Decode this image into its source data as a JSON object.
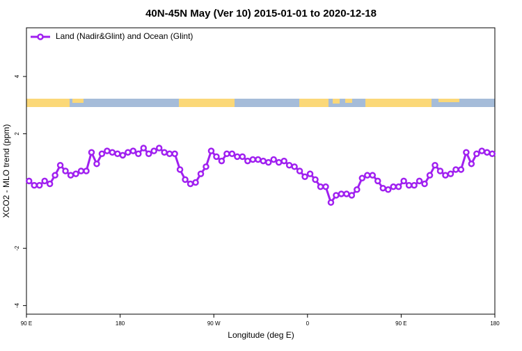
{
  "chart_data": {
    "type": "line",
    "title": "40N-45N May (Ver 10)   2015-01-01 to 2020-12-18",
    "xlabel": "Longitude (deg E)",
    "ylabel": "XCO2 - MLO trend (ppm)",
    "xlim": [
      90,
      540
    ],
    "xticks": [
      {
        "value": 90,
        "label": "90 E"
      },
      {
        "value": 180,
        "label": "180"
      },
      {
        "value": 270,
        "label": "90 W"
      },
      {
        "value": 360,
        "label": "0"
      },
      {
        "value": 450,
        "label": "90 E"
      },
      {
        "value": 540,
        "label": "180"
      }
    ],
    "ylim": [
      -4.3,
      5.7
    ],
    "yticks": [
      -4,
      -2,
      2,
      4
    ],
    "legend": "top-left",
    "series": [
      {
        "name": "Land (Nadir&Glint) and Ocean (Glint)",
        "color": "#a020f0",
        "x": [
          92.5,
          97.5,
          102.5,
          107.5,
          112.5,
          117.5,
          122.5,
          127.5,
          132.5,
          137.5,
          142.5,
          147.5,
          152.5,
          157.5,
          162.5,
          167.5,
          172.5,
          177.5,
          182.5,
          187.5,
          192.5,
          197.5,
          202.5,
          207.5,
          212.5,
          217.5,
          222.5,
          227.5,
          232.5,
          237.5,
          242.5,
          247.5,
          252.5,
          257.5,
          262.5,
          267.5,
          272.5,
          277.5,
          282.5,
          287.5,
          292.5,
          297.5,
          302.5,
          307.5,
          312.5,
          317.5,
          322.5,
          327.5,
          332.5,
          337.5,
          342.5,
          347.5,
          352.5,
          357.5,
          362.5,
          367.5,
          372.5,
          377.5,
          382.5,
          387.5,
          392.5,
          397.5,
          402.5,
          407.5,
          412.5,
          417.5,
          422.5,
          427.5,
          432.5,
          437.5,
          442.5,
          447.5,
          452.5,
          457.5,
          462.5,
          467.5,
          472.5,
          477.5,
          482.5,
          487.5,
          492.5,
          497.5,
          502.5,
          507.5,
          512.5,
          517.5,
          522.5,
          527.5,
          532.5,
          537.5
        ],
        "values": [
          0.35,
          0.2,
          0.2,
          0.35,
          0.25,
          0.55,
          0.9,
          0.7,
          0.55,
          0.6,
          0.7,
          0.7,
          1.35,
          0.95,
          1.3,
          1.4,
          1.35,
          1.3,
          1.25,
          1.35,
          1.4,
          1.3,
          1.5,
          1.3,
          1.4,
          1.5,
          1.35,
          1.3,
          1.3,
          0.75,
          0.4,
          0.25,
          0.3,
          0.6,
          0.85,
          1.4,
          1.2,
          1.05,
          1.3,
          1.3,
          1.2,
          1.2,
          1.05,
          1.1,
          1.1,
          1.05,
          1.0,
          1.1,
          1.0,
          1.05,
          0.9,
          0.85,
          0.7,
          0.5,
          0.6,
          0.4,
          0.15,
          0.15,
          -0.4,
          -0.15,
          -0.1,
          -0.1,
          -0.15,
          0.05,
          0.45,
          0.55,
          0.55,
          0.35,
          0.1,
          0.05,
          0.15,
          0.15,
          0.35,
          0.2,
          0.2,
          0.35,
          0.25,
          0.55,
          0.9,
          0.7,
          0.55,
          0.6,
          0.75,
          0.75,
          1.35,
          0.95,
          1.3,
          1.4,
          1.35,
          1.3
        ]
      }
    ]
  }
}
